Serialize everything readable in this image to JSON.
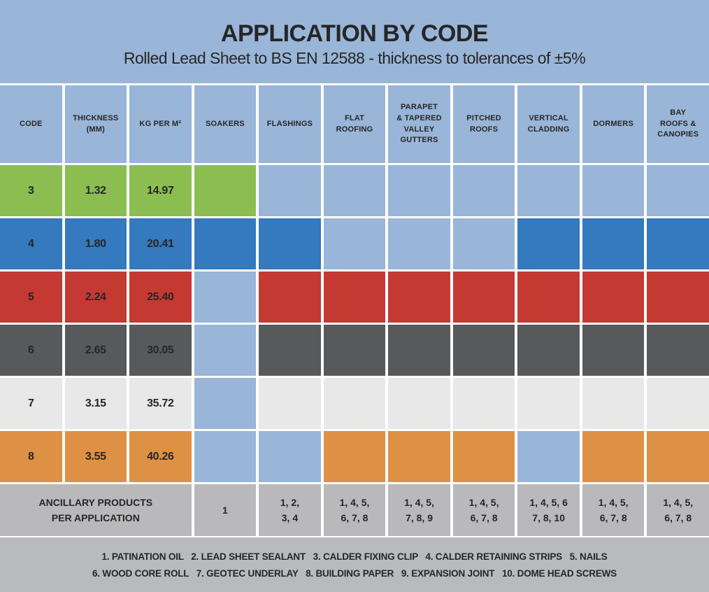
{
  "title": "APPLICATION BY CODE",
  "subtitle": "Rolled Lead Sheet to BS EN 12588 - thickness to tolerances of ±5%",
  "colors": {
    "page_background": "#99B5D8",
    "cell_default": "#99B5D8",
    "separator": "#FFFFFF",
    "text": "#262626",
    "ancillary_background": "#B9B9BB",
    "legend_background": "#B9BABE",
    "code_3": "#8CBD51",
    "code_4": "#3579BE",
    "code_5": "#C53933",
    "code_6": "#58595B",
    "code_7": "#E8E8E8",
    "code_8": "#DE9045"
  },
  "chart_data": {
    "type": "table",
    "title": "APPLICATION BY CODE",
    "subtitle": "Rolled Lead Sheet to BS EN 12588 - thickness to tolerances of ±5%",
    "columns": [
      "CODE",
      "THICKNESS\n(MM)",
      "KG PER M²",
      "SOAKERS",
      "FLASHINGS",
      "FLAT\nROOFING",
      "PARAPET\n& TAPERED\nVALLEY\nGUTTERS",
      "PITCHED\nROOFS",
      "VERTICAL\nCLADDING",
      "DORMERS",
      "BAY\nROOFS &\nCANOPIES"
    ],
    "application_columns": [
      "SOAKERS",
      "FLASHINGS",
      "FLAT ROOFING",
      "PARAPET & TAPERED VALLEY GUTTERS",
      "PITCHED ROOFS",
      "VERTICAL CLADDING",
      "DORMERS",
      "BAY ROOFS & CANOPIES"
    ],
    "rows": [
      {
        "code": "3",
        "thickness_mm": "1.32",
        "kg_per_m2": "14.97",
        "color": "#8CBD51",
        "applications": [
          1,
          0,
          0,
          0,
          0,
          0,
          0,
          0
        ]
      },
      {
        "code": "4",
        "thickness_mm": "1.80",
        "kg_per_m2": "20.41",
        "color": "#3579BE",
        "applications": [
          1,
          1,
          0,
          0,
          0,
          1,
          1,
          1
        ]
      },
      {
        "code": "5",
        "thickness_mm": "2.24",
        "kg_per_m2": "25.40",
        "color": "#C53933",
        "applications": [
          0,
          1,
          1,
          1,
          1,
          1,
          1,
          1
        ]
      },
      {
        "code": "6",
        "thickness_mm": "2.65",
        "kg_per_m2": "30.05",
        "color": "#58595B",
        "applications": [
          0,
          1,
          1,
          1,
          1,
          1,
          1,
          1
        ]
      },
      {
        "code": "7",
        "thickness_mm": "3.15",
        "kg_per_m2": "35.72",
        "color": "#E8E8E8",
        "applications": [
          0,
          1,
          1,
          1,
          1,
          1,
          1,
          1
        ]
      },
      {
        "code": "8",
        "thickness_mm": "3.55",
        "kg_per_m2": "40.26",
        "color": "#DE9045",
        "applications": [
          0,
          0,
          1,
          1,
          1,
          0,
          1,
          1
        ]
      }
    ],
    "ancillary_row": {
      "label": "ANCILLARY PRODUCTS\nPER APPLICATION",
      "values": [
        "1",
        "1, 2,\n3, 4",
        "1, 4, 5,\n6, 7, 8",
        "1, 4, 5,\n7, 8, 9",
        "1, 4, 5,\n6, 7, 8",
        "1, 4, 5, 6\n7, 8, 10",
        "1, 4, 5,\n6, 7, 8",
        "1, 4, 5,\n6, 7, 8"
      ]
    },
    "legend_lines": [
      "1. PATINATION OIL   2. LEAD SHEET SEALANT   3. CALDER FIXING CLIP   4. CALDER RETAINING STRIPS   5. NAILS",
      "6. WOOD CORE ROLL   7. GEOTEC UNDERLAY   8. BUILDING PAPER   9. EXPANSION JOINT   10. DOME HEAD SCREWS"
    ]
  }
}
